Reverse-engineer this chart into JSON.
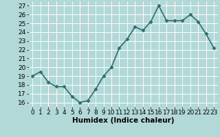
{
  "x": [
    0,
    1,
    2,
    3,
    4,
    5,
    6,
    7,
    8,
    9,
    10,
    11,
    12,
    13,
    14,
    15,
    16,
    17,
    18,
    19,
    20,
    21,
    22,
    23
  ],
  "y": [
    19.0,
    19.5,
    18.3,
    17.8,
    17.8,
    16.7,
    16.0,
    16.2,
    17.5,
    19.0,
    20.0,
    22.2,
    23.2,
    24.6,
    24.2,
    25.2,
    27.0,
    25.3,
    25.3,
    25.3,
    26.0,
    25.2,
    23.8,
    22.2
  ],
  "xlabel": "Humidex (Indice chaleur)",
  "line_color": "#2d6e6e",
  "marker_color": "#2d6e6e",
  "bg_color": "#b2d8d8",
  "grid_color": "#ffffff",
  "ylim": [
    15.5,
    27.5
  ],
  "xlim": [
    -0.5,
    23.5
  ],
  "yticks": [
    16,
    17,
    18,
    19,
    20,
    21,
    22,
    23,
    24,
    25,
    26,
    27
  ],
  "xticks": [
    0,
    1,
    2,
    3,
    4,
    5,
    6,
    7,
    8,
    9,
    10,
    11,
    12,
    13,
    14,
    15,
    16,
    17,
    18,
    19,
    20,
    21,
    22,
    23
  ],
  "xtick_labels": [
    "0",
    "1",
    "2",
    "3",
    "4",
    "5",
    "6",
    "7",
    "8",
    "9",
    "10",
    "11",
    "12",
    "13",
    "14",
    "15",
    "16",
    "17",
    "18",
    "19",
    "20",
    "21",
    "22",
    "23"
  ],
  "xlabel_fontsize": 7.5,
  "tick_fontsize": 6.5,
  "line_width": 1.2,
  "marker_size": 2.5
}
